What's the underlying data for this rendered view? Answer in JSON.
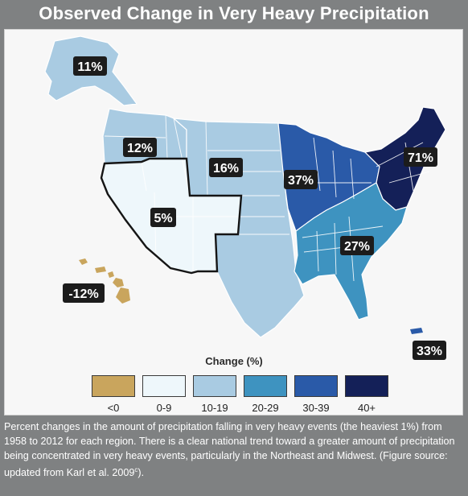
{
  "title": "Observed Change in Very Heavy Precipitation",
  "legend": {
    "title": "Change (%)",
    "items": [
      {
        "label": "<0",
        "color": "#c9a55d"
      },
      {
        "label": "0-9",
        "color": "#eef7fb"
      },
      {
        "label": "10-19",
        "color": "#a9cbe2"
      },
      {
        "label": "20-29",
        "color": "#3e93c0"
      },
      {
        "label": "30-39",
        "color": "#2a5aa8"
      },
      {
        "label": "40+",
        "color": "#142058"
      }
    ]
  },
  "regions": [
    {
      "name": "Alaska",
      "label": "11%",
      "value": 11
    },
    {
      "name": "Northwest",
      "label": "12%",
      "value": 12
    },
    {
      "name": "Great Plains",
      "label": "16%",
      "value": 16
    },
    {
      "name": "Southwest",
      "label": "5%",
      "value": 5
    },
    {
      "name": "Midwest",
      "label": "37%",
      "value": 37
    },
    {
      "name": "Northeast",
      "label": "71%",
      "value": 71
    },
    {
      "name": "Southeast",
      "label": "27%",
      "value": 27
    },
    {
      "name": "Hawaii",
      "label": "-12%",
      "value": -12
    },
    {
      "name": "Puerto Rico",
      "label": "33%",
      "value": 33
    }
  ],
  "caption": {
    "text": "Percent changes in the amount of precipitation falling in very heavy events (the heaviest 1%) from 1958 to 2012 for each region. There is a clear national trend toward a greater amount of precipitation being concentrated in very heavy events, particularly in the Northeast and Midwest. (Figure source: updated from Karl et al. 2009",
    "superscript": "c",
    "suffix": ")."
  }
}
